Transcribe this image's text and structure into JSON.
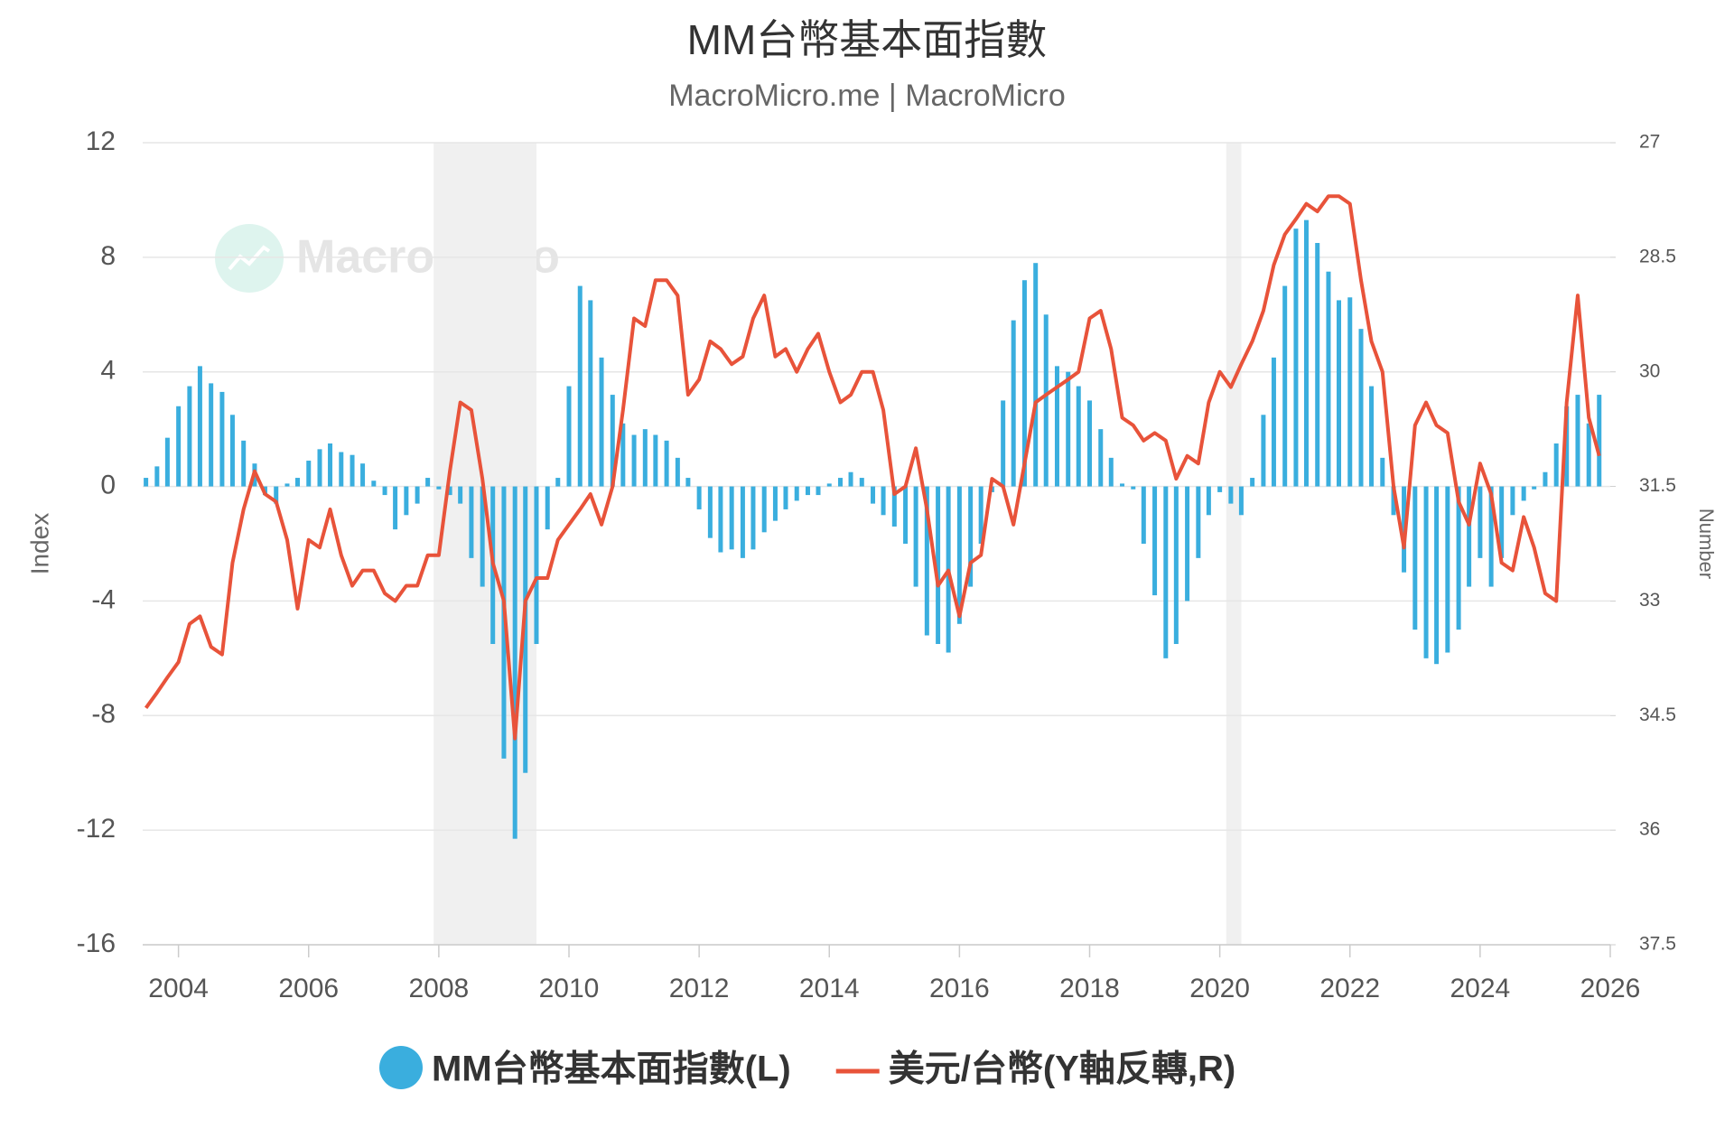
{
  "chart_data": {
    "type": "bar-line",
    "title": "MM台幣基本面指數",
    "subtitle": "MacroMicro.me | MacroMicro",
    "watermark": "MacroMicro",
    "ylabel": "Index",
    "y2label": "Number",
    "xlim": [
      2003.45,
      2026.0
    ],
    "xticks": [
      2004,
      2006,
      2008,
      2010,
      2012,
      2014,
      2016,
      2018,
      2020,
      2022,
      2024,
      2026
    ],
    "ylim": [
      -16,
      12
    ],
    "yticks": [
      -16,
      -12,
      -8,
      -4,
      0,
      4,
      8,
      12
    ],
    "y2lim": [
      27,
      37.5
    ],
    "y2ticks": [
      27,
      28.5,
      30,
      31.5,
      33,
      34.5,
      36,
      37.5
    ],
    "y2_inverted": true,
    "grid": true,
    "legend": "bottom",
    "recessions": [
      [
        2007.92,
        2009.5
      ],
      [
        2020.1,
        2020.33
      ]
    ],
    "x": [
      2003.5,
      2003.67,
      2003.83,
      2004.0,
      2004.17,
      2004.33,
      2004.5,
      2004.67,
      2004.83,
      2005.0,
      2005.17,
      2005.33,
      2005.5,
      2005.67,
      2005.83,
      2006.0,
      2006.17,
      2006.33,
      2006.5,
      2006.67,
      2006.83,
      2007.0,
      2007.17,
      2007.33,
      2007.5,
      2007.67,
      2007.83,
      2008.0,
      2008.17,
      2008.33,
      2008.5,
      2008.67,
      2008.83,
      2009.0,
      2009.17,
      2009.33,
      2009.5,
      2009.67,
      2009.83,
      2010.0,
      2010.17,
      2010.33,
      2010.5,
      2010.67,
      2010.83,
      2011.0,
      2011.17,
      2011.33,
      2011.5,
      2011.67,
      2011.83,
      2012.0,
      2012.17,
      2012.33,
      2012.5,
      2012.67,
      2012.83,
      2013.0,
      2013.17,
      2013.33,
      2013.5,
      2013.67,
      2013.83,
      2014.0,
      2014.17,
      2014.33,
      2014.5,
      2014.67,
      2014.83,
      2015.0,
      2015.17,
      2015.33,
      2015.5,
      2015.67,
      2015.83,
      2016.0,
      2016.17,
      2016.33,
      2016.5,
      2016.67,
      2016.83,
      2017.0,
      2017.17,
      2017.33,
      2017.5,
      2017.67,
      2017.83,
      2018.0,
      2018.17,
      2018.33,
      2018.5,
      2018.67,
      2018.83,
      2019.0,
      2019.17,
      2019.33,
      2019.5,
      2019.67,
      2019.83,
      2020.0,
      2020.17,
      2020.33,
      2020.5,
      2020.67,
      2020.83,
      2021.0,
      2021.17,
      2021.33,
      2021.5,
      2021.67,
      2021.83,
      2022.0,
      2022.17,
      2022.33,
      2022.5,
      2022.67,
      2022.83,
      2023.0,
      2023.17,
      2023.33,
      2023.5,
      2023.67,
      2023.83,
      2024.0,
      2024.17,
      2024.33,
      2024.5,
      2024.67,
      2024.83,
      2025.0,
      2025.17,
      2025.33,
      2025.5,
      2025.67,
      2025.83
    ],
    "series": [
      {
        "name": "MM台幣基本面指數(L)",
        "color": "#3aaede",
        "kind": "bar",
        "axis": "y",
        "values": [
          0.3,
          0.7,
          1.7,
          2.8,
          3.5,
          4.2,
          3.6,
          3.3,
          2.5,
          1.6,
          0.8,
          -0.3,
          -0.6,
          0.1,
          0.3,
          0.9,
          1.3,
          1.5,
          1.2,
          1.1,
          0.8,
          0.2,
          -0.3,
          -1.5,
          -1.0,
          -0.6,
          0.3,
          -0.1,
          -0.3,
          -0.6,
          -2.5,
          -3.5,
          -5.5,
          -9.5,
          -12.3,
          -10,
          -5.5,
          -1.5,
          0.3,
          3.5,
          7.0,
          6.5,
          4.5,
          3.2,
          2.2,
          1.8,
          2.0,
          1.8,
          1.6,
          1.0,
          0.3,
          -0.8,
          -1.8,
          -2.3,
          -2.2,
          -2.5,
          -2.2,
          -1.6,
          -1.2,
          -0.8,
          -0.5,
          -0.3,
          -0.3,
          0.1,
          0.3,
          0.5,
          0.3,
          -0.6,
          -1.0,
          -1.4,
          -2.0,
          -3.5,
          -5.2,
          -5.5,
          -5.8,
          -4.8,
          -3.5,
          -2.0,
          -0.2,
          3.0,
          5.8,
          7.2,
          7.8,
          6.0,
          4.2,
          4.0,
          3.5,
          3.0,
          2.0,
          1.0,
          0.1,
          -0.1,
          -2.0,
          -3.8,
          -6.0,
          -5.5,
          -4.0,
          -2.5,
          -1.0,
          -0.2,
          -0.6,
          -1.0,
          0.3,
          2.5,
          4.5,
          7.0,
          9.0,
          9.3,
          8.5,
          7.5,
          6.5,
          6.6,
          5.5,
          3.5,
          1.0,
          -1.0,
          -3.0,
          -5.0,
          -6.0,
          -6.2,
          -5.8,
          -5.0,
          -3.5,
          -2.5,
          -3.5,
          -2.5,
          -1.0,
          -0.5,
          -0.1,
          0.5,
          1.5,
          2.8,
          3.2,
          2.2,
          3.2
        ]
      },
      {
        "name": "美元/台幣(Y軸反轉,R)",
        "color": "#e8533a",
        "kind": "line",
        "axis": "y2",
        "values": [
          34.4,
          34.2,
          34.0,
          33.8,
          33.3,
          33.2,
          33.6,
          33.7,
          32.5,
          31.8,
          31.3,
          31.6,
          31.7,
          32.2,
          33.1,
          32.2,
          32.3,
          31.8,
          32.4,
          32.8,
          32.6,
          32.6,
          32.9,
          33.0,
          32.8,
          32.8,
          32.4,
          32.4,
          31.3,
          30.4,
          30.5,
          31.4,
          32.5,
          33.0,
          34.8,
          33.0,
          32.7,
          32.7,
          32.2,
          32.0,
          31.8,
          31.6,
          32.0,
          31.5,
          30.5,
          29.3,
          29.4,
          28.8,
          28.8,
          29.0,
          30.3,
          30.1,
          29.6,
          29.7,
          29.9,
          29.8,
          29.3,
          29.0,
          29.8,
          29.7,
          30.0,
          29.7,
          29.5,
          30.0,
          30.4,
          30.3,
          30.0,
          30.0,
          30.5,
          31.6,
          31.5,
          31.0,
          31.8,
          32.8,
          32.6,
          33.2,
          32.5,
          32.4,
          31.4,
          31.5,
          32.0,
          31.2,
          30.4,
          30.3,
          30.2,
          30.1,
          30.0,
          29.3,
          29.2,
          29.7,
          30.6,
          30.7,
          30.9,
          30.8,
          30.9,
          31.4,
          31.1,
          31.2,
          30.4,
          30.0,
          30.2,
          29.9,
          29.6,
          29.2,
          28.6,
          28.2,
          28.0,
          27.8,
          27.9,
          27.7,
          27.7,
          27.8,
          28.8,
          29.6,
          30.0,
          31.5,
          32.3,
          30.7,
          30.4,
          30.7,
          30.8,
          31.7,
          32.0,
          31.2,
          31.6,
          32.5,
          32.6,
          31.9,
          32.3,
          32.9,
          33.0,
          30.4,
          29.0,
          30.6,
          31.1
        ]
      }
    ]
  }
}
